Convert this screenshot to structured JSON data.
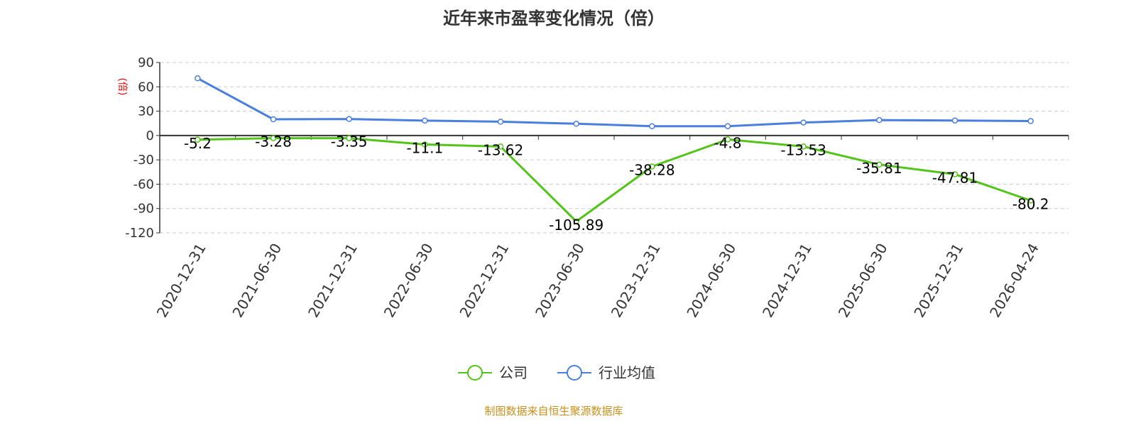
{
  "title": "近年来市盈率变化情况（倍）",
  "source": "制图数据来自恒生聚源数据库",
  "chart_data": {
    "type": "line",
    "ylabel": "(倍)",
    "ylim": [
      -120,
      90
    ],
    "yticks": [
      90,
      60,
      30,
      0,
      -30,
      -60,
      -90,
      -120
    ],
    "grid": true,
    "legend_position": "bottom",
    "categories": [
      "2020-12-31",
      "2021-06-30",
      "2021-12-31",
      "2022-06-30",
      "2022-12-31",
      "2023-06-30",
      "2023-12-31",
      "2024-06-30",
      "2024-12-31",
      "2025-06-30",
      "2025-12-31",
      "2026-04-24"
    ],
    "series": [
      {
        "name": "公司",
        "color": "#52c41a",
        "values": [
          -5.2,
          -3.28,
          -3.35,
          -11.1,
          -13.62,
          -105.89,
          -38.28,
          -4.8,
          -13.53,
          -35.81,
          -47.81,
          -80.2
        ],
        "labels": [
          "-5.2",
          "-3.28",
          "-3.35",
          "-11.1",
          "-13.62",
          "-105.89",
          "-38.28",
          "-4.8",
          "-13.53",
          "-35.81",
          "-47.81",
          "-80.2"
        ]
      },
      {
        "name": "行业均值",
        "color": "#4a7fe0",
        "values": [
          70.5,
          20,
          20.3,
          18.4,
          17,
          14.5,
          11.5,
          11.5,
          16,
          19,
          18.5,
          17.8
        ]
      }
    ]
  }
}
